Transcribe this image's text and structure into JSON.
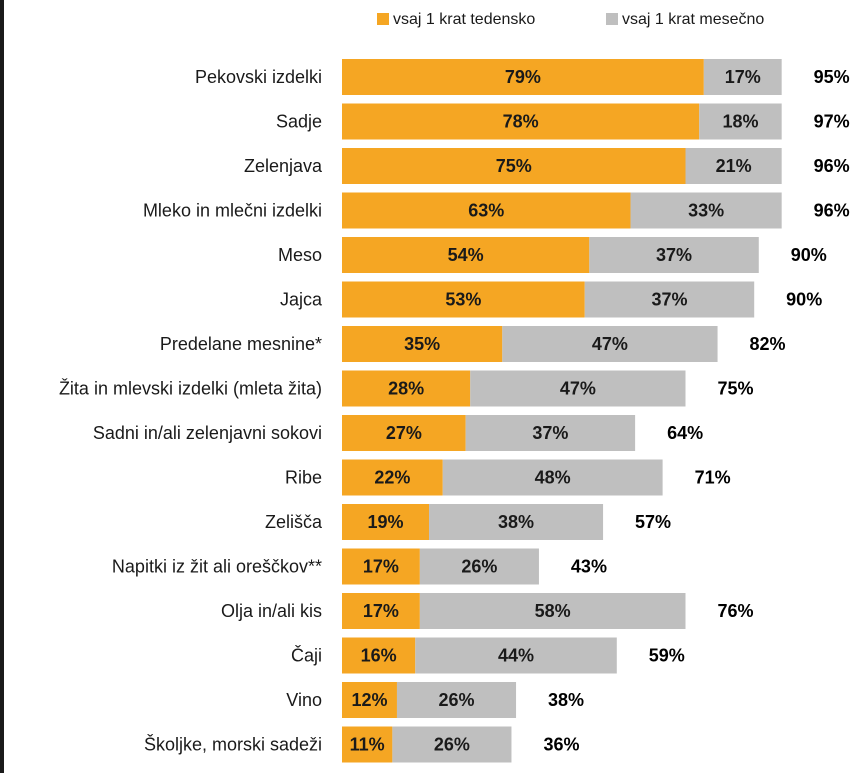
{
  "chart_data": {
    "type": "bar",
    "orientation": "horizontal",
    "stacked": true,
    "unit": "%",
    "categories": [
      "Pekovski izdelki",
      "Sadje",
      "Zelenjava",
      "Mleko in mlečni izdelki",
      "Meso",
      "Jajca",
      "Predelane mesnine*",
      "Žita in mlevski izdelki (mleta žita)",
      "Sadni in/ali zelenjavni sokovi",
      "Ribe",
      "Zelišča",
      "Napitki iz žit ali oreščkov**",
      "Olja in/ali kis",
      "Čaji",
      "Vino",
      "Školjke, morski sadeži"
    ],
    "series": [
      {
        "name": "vsaj 1 krat tedensko",
        "color": "#F5A623",
        "values": [
          79,
          78,
          75,
          63,
          54,
          53,
          35,
          28,
          27,
          22,
          19,
          17,
          17,
          16,
          12,
          11
        ]
      },
      {
        "name": "vsaj 1 krat mesečno",
        "color": "#BFBFBF",
        "values": [
          17,
          18,
          21,
          33,
          37,
          37,
          47,
          47,
          37,
          48,
          38,
          26,
          58,
          44,
          26,
          26
        ]
      }
    ],
    "totals": [
      95,
      97,
      96,
      96,
      90,
      90,
      82,
      75,
      64,
      71,
      57,
      43,
      76,
      59,
      38,
      36
    ],
    "legend_position": "top",
    "grid": false
  }
}
